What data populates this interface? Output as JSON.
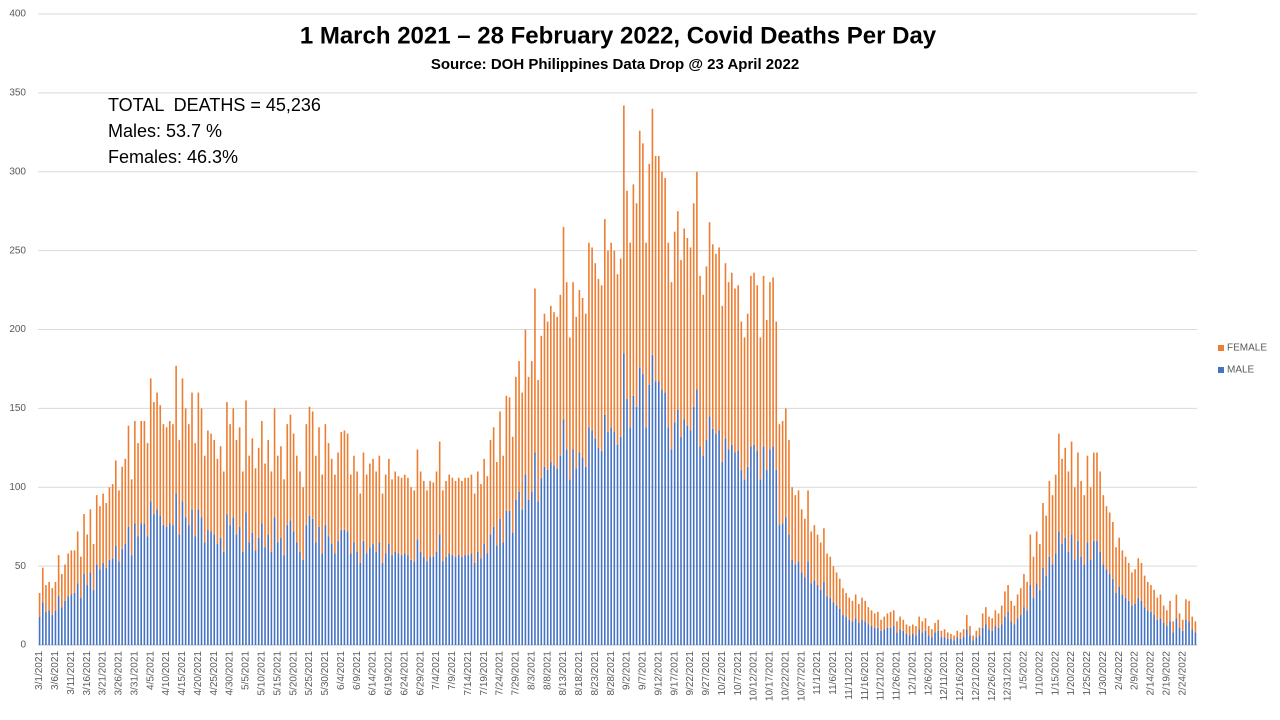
{
  "chart_data": {
    "type": "stacked_bar",
    "title": "1 March 2021 – 28 February 2022, Covid Deaths Per Day",
    "subtitle": "Source: DOH Philippines Data Drop @ 23 April 2022",
    "annotations": [
      "TOTAL  DEATHS = 45,236",
      "Males: 53.7 %",
      "Females: 46.3%"
    ],
    "ylim": [
      0,
      400
    ],
    "yticks": [
      0,
      50,
      100,
      150,
      200,
      250,
      300,
      350,
      400
    ],
    "grid": true,
    "legend": "right",
    "categories": [
      "3/1/2021",
      null,
      null,
      null,
      null,
      "3/6/2021",
      null,
      null,
      null,
      null,
      "3/11/2021",
      null,
      null,
      null,
      null,
      "3/16/2021",
      null,
      null,
      null,
      null,
      "3/21/2021",
      null,
      null,
      null,
      null,
      "3/26/2021",
      null,
      null,
      null,
      null,
      "3/31/2021",
      null,
      null,
      null,
      null,
      "4/5/2021",
      null,
      null,
      null,
      null,
      "4/10/2021",
      null,
      null,
      null,
      null,
      "4/15/2021",
      null,
      null,
      null,
      null,
      "4/20/2021",
      null,
      null,
      null,
      null,
      "4/25/2021",
      null,
      null,
      null,
      null,
      "4/30/2021",
      null,
      null,
      null,
      null,
      "5/5/2021",
      null,
      null,
      null,
      null,
      "5/10/2021",
      null,
      null,
      null,
      null,
      "5/15/2021",
      null,
      null,
      null,
      null,
      "5/20/2021",
      null,
      null,
      null,
      null,
      "5/25/2021",
      null,
      null,
      null,
      null,
      "5/30/2021",
      null,
      null,
      null,
      null,
      "6/4/2021",
      null,
      null,
      null,
      null,
      "6/9/2021",
      null,
      null,
      null,
      null,
      "6/14/2021",
      null,
      null,
      null,
      null,
      "6/19/2021",
      null,
      null,
      null,
      null,
      "6/24/2021",
      null,
      null,
      null,
      null,
      "6/29/2021",
      null,
      null,
      null,
      null,
      "7/4/2021",
      null,
      null,
      null,
      null,
      "7/9/2021",
      null,
      null,
      null,
      null,
      "7/14/2021",
      null,
      null,
      null,
      null,
      "7/19/2021",
      null,
      null,
      null,
      null,
      "7/24/2021",
      null,
      null,
      null,
      null,
      "7/29/2021",
      null,
      null,
      null,
      null,
      "8/3/2021",
      null,
      null,
      null,
      null,
      "8/8/2021",
      null,
      null,
      null,
      null,
      "8/13/2021",
      null,
      null,
      null,
      null,
      "8/18/2021",
      null,
      null,
      null,
      null,
      "8/23/2021",
      null,
      null,
      null,
      null,
      "8/28/2021",
      null,
      null,
      null,
      null,
      "9/2/2021",
      null,
      null,
      null,
      null,
      "9/7/2021",
      null,
      null,
      null,
      null,
      "9/12/2021",
      null,
      null,
      null,
      null,
      "9/17/2021",
      null,
      null,
      null,
      null,
      "9/22/2021",
      null,
      null,
      null,
      null,
      "9/27/2021",
      null,
      null,
      null,
      null,
      "10/2/2021",
      null,
      null,
      null,
      null,
      "10/7/2021",
      null,
      null,
      null,
      null,
      "10/12/2021",
      null,
      null,
      null,
      null,
      "10/17/2021",
      null,
      null,
      null,
      null,
      "10/22/2021",
      null,
      null,
      null,
      null,
      "10/27/2021",
      null,
      null,
      null,
      null,
      "11/1/2021",
      null,
      null,
      null,
      null,
      "11/6/2021",
      null,
      null,
      null,
      null,
      "11/11/2021",
      null,
      null,
      null,
      null,
      "11/16/2021",
      null,
      null,
      null,
      null,
      "11/21/2021",
      null,
      null,
      null,
      null,
      "11/26/2021",
      null,
      null,
      null,
      null,
      "12/1/2021",
      null,
      null,
      null,
      null,
      "12/6/2021",
      null,
      null,
      null,
      null,
      "12/11/2021",
      null,
      null,
      null,
      null,
      "12/16/2021",
      null,
      null,
      null,
      null,
      "12/21/2021",
      null,
      null,
      null,
      null,
      "12/26/2021",
      null,
      null,
      null,
      null,
      "12/31/2021",
      null,
      null,
      null,
      null,
      "1/5/2022",
      null,
      null,
      null,
      null,
      "1/10/2022",
      null,
      null,
      null,
      null,
      "1/15/2022",
      null,
      null,
      null,
      null,
      "1/20/2022",
      null,
      null,
      null,
      null,
      "1/25/2022",
      null,
      null,
      null,
      null,
      "1/30/2022",
      null,
      null,
      null,
      null,
      "2/4/2022",
      null,
      null,
      null,
      null,
      "2/9/2022",
      null,
      null,
      null,
      null,
      "2/14/2022",
      null,
      null,
      null,
      null,
      "2/19/2022",
      null,
      null,
      null,
      null,
      "2/24/2022",
      null,
      null,
      null,
      null
    ],
    "series": [
      {
        "name": "MALE",
        "color": "#4472c4",
        "values": [
          18,
          27,
          21,
          22,
          19,
          22,
          31,
          24,
          28,
          31,
          32,
          33,
          39,
          30,
          45,
          38,
          46,
          35,
          51,
          48,
          52,
          49,
          54,
          55,
          63,
          53,
          61,
          64,
          75,
          57,
          77,
          69,
          77,
          77,
          69,
          91,
          83,
          86,
          82,
          76,
          75,
          77,
          76,
          96,
          70,
          91,
          81,
          76,
          86,
          69,
          86,
          81,
          65,
          73,
          72,
          70,
          64,
          68,
          59,
          83,
          76,
          81,
          70,
          75,
          59,
          84,
          65,
          71,
          60,
          68,
          77,
          62,
          70,
          59,
          81,
          65,
          68,
          57,
          76,
          79,
          72,
          65,
          59,
          54,
          76,
          82,
          80,
          65,
          75,
          58,
          76,
          69,
          64,
          58,
          66,
          73,
          73,
          72,
          58,
          65,
          59,
          52,
          66,
          58,
          62,
          64,
          59,
          65,
          52,
          58,
          64,
          57,
          59,
          58,
          57,
          58,
          57,
          54,
          53,
          67,
          59,
          56,
          53,
          56,
          56,
          59,
          70,
          53,
          56,
          58,
          57,
          56,
          57,
          56,
          57,
          57,
          58,
          52,
          59,
          55,
          64,
          58,
          70,
          75,
          63,
          80,
          65,
          85,
          85,
          71,
          92,
          97,
          86,
          108,
          92,
          97,
          122,
          91,
          106,
          113,
          111,
          116,
          114,
          112,
          120,
          143,
          124,
          105,
          124,
          112,
          122,
          119,
          113,
          138,
          136,
          131,
          125,
          123,
          146,
          135,
          138,
          135,
          127,
          132,
          185,
          156,
          138,
          158,
          151,
          176,
          172,
          138,
          165,
          184,
          167,
          167,
          162,
          160,
          138,
          124,
          141,
          149,
          132,
          143,
          139,
          136,
          151,
          162,
          126,
          120,
          130,
          145,
          137,
          134,
          136,
          116,
          131,
          124,
          127,
          122,
          123,
          111,
          105,
          113,
          126,
          127,
          123,
          105,
          126,
          111,
          124,
          126,
          111,
          76,
          77,
          81,
          70,
          54,
          51,
          53,
          46,
          43,
          53,
          39,
          41,
          38,
          35,
          40,
          31,
          30,
          27,
          25,
          23,
          19,
          18,
          16,
          15,
          17,
          14,
          16,
          15,
          13,
          12,
          11,
          11,
          9,
          10,
          11,
          11,
          12,
          8,
          10,
          9,
          7,
          6,
          7,
          6,
          10,
          8,
          9,
          6,
          5,
          8,
          9,
          5,
          5,
          4,
          4,
          3,
          5,
          4,
          5,
          10,
          6,
          3,
          5,
          6,
          11,
          13,
          10,
          9,
          12,
          11,
          13,
          18,
          21,
          15,
          13,
          17,
          19,
          24,
          22,
          38,
          30,
          39,
          35,
          49,
          44,
          56,
          51,
          58,
          72,
          64,
          68,
          59,
          70,
          54,
          66,
          56,
          51,
          65,
          54,
          66,
          66,
          59,
          51,
          48,
          45,
          42,
          33,
          37,
          32,
          30,
          28,
          25,
          26,
          30,
          28,
          24,
          22,
          21,
          19,
          16,
          17,
          14,
          12,
          15,
          8,
          17,
          11,
          9,
          16,
          15,
          10,
          8
        ]
      },
      {
        "name": "FEMALE",
        "color": "#ed7d31",
        "values": [
          15,
          22,
          17,
          18,
          17,
          18,
          26,
          21,
          23,
          27,
          28,
          27,
          33,
          26,
          38,
          32,
          40,
          29,
          44,
          40,
          44,
          41,
          46,
          47,
          54,
          45,
          52,
          54,
          64,
          48,
          65,
          59,
          65,
          65,
          59,
          78,
          71,
          74,
          70,
          64,
          63,
          65,
          64,
          81,
          60,
          78,
          69,
          64,
          74,
          59,
          74,
          69,
          55,
          63,
          62,
          60,
          54,
          58,
          51,
          71,
          64,
          69,
          60,
          63,
          51,
          71,
          55,
          60,
          52,
          57,
          65,
          53,
          60,
          51,
          69,
          55,
          58,
          48,
          64,
          67,
          62,
          55,
          51,
          46,
          64,
          69,
          68,
          55,
          63,
          50,
          64,
          59,
          54,
          50,
          56,
          62,
          63,
          62,
          50,
          55,
          51,
          44,
          56,
          50,
          53,
          54,
          51,
          55,
          44,
          50,
          54,
          48,
          51,
          49,
          49,
          50,
          49,
          46,
          45,
          57,
          51,
          48,
          45,
          48,
          47,
          51,
          59,
          45,
          48,
          50,
          49,
          48,
          49,
          48,
          49,
          49,
          50,
          44,
          51,
          47,
          54,
          49,
          60,
          63,
          53,
          68,
          55,
          73,
          72,
          61,
          78,
          83,
          74,
          92,
          78,
          83,
          104,
          77,
          90,
          97,
          94,
          99,
          97,
          96,
          102,
          122,
          106,
          90,
          106,
          96,
          103,
          101,
          97,
          117,
          116,
          111,
          107,
          105,
          124,
          115,
          117,
          115,
          108,
          113,
          157,
          132,
          117,
          134,
          129,
          150,
          146,
          117,
          140,
          156,
          143,
          143,
          138,
          136,
          117,
          106,
          121,
          126,
          112,
          121,
          119,
          116,
          129,
          138,
          108,
          102,
          110,
          123,
          117,
          114,
          116,
          99,
          111,
          106,
          109,
          104,
          105,
          94,
          90,
          97,
          108,
          109,
          105,
          90,
          108,
          95,
          106,
          107,
          94,
          64,
          65,
          69,
          60,
          46,
          44,
          45,
          40,
          37,
          45,
          33,
          35,
          32,
          30,
          34,
          27,
          26,
          23,
          21,
          19,
          17,
          15,
          14,
          13,
          15,
          12,
          14,
          13,
          11,
          10,
          9,
          10,
          7,
          8,
          9,
          10,
          10,
          7,
          8,
          7,
          6,
          6,
          6,
          6,
          8,
          7,
          8,
          6,
          5,
          6,
          7,
          4,
          5,
          4,
          3,
          3,
          4,
          4,
          5,
          9,
          6,
          3,
          4,
          5,
          9,
          11,
          8,
          8,
          10,
          9,
          12,
          16,
          17,
          13,
          12,
          15,
          17,
          21,
          18,
          32,
          26,
          33,
          29,
          41,
          38,
          48,
          44,
          50,
          62,
          54,
          57,
          51,
          59,
          46,
          56,
          48,
          44,
          55,
          46,
          56,
          56,
          51,
          44,
          40,
          39,
          36,
          29,
          31,
          28,
          26,
          24,
          21,
          22,
          25,
          24,
          20,
          18,
          17,
          16,
          14,
          15,
          11,
          10,
          13,
          7,
          15,
          9,
          7,
          13,
          13,
          8,
          7
        ]
      }
    ]
  }
}
